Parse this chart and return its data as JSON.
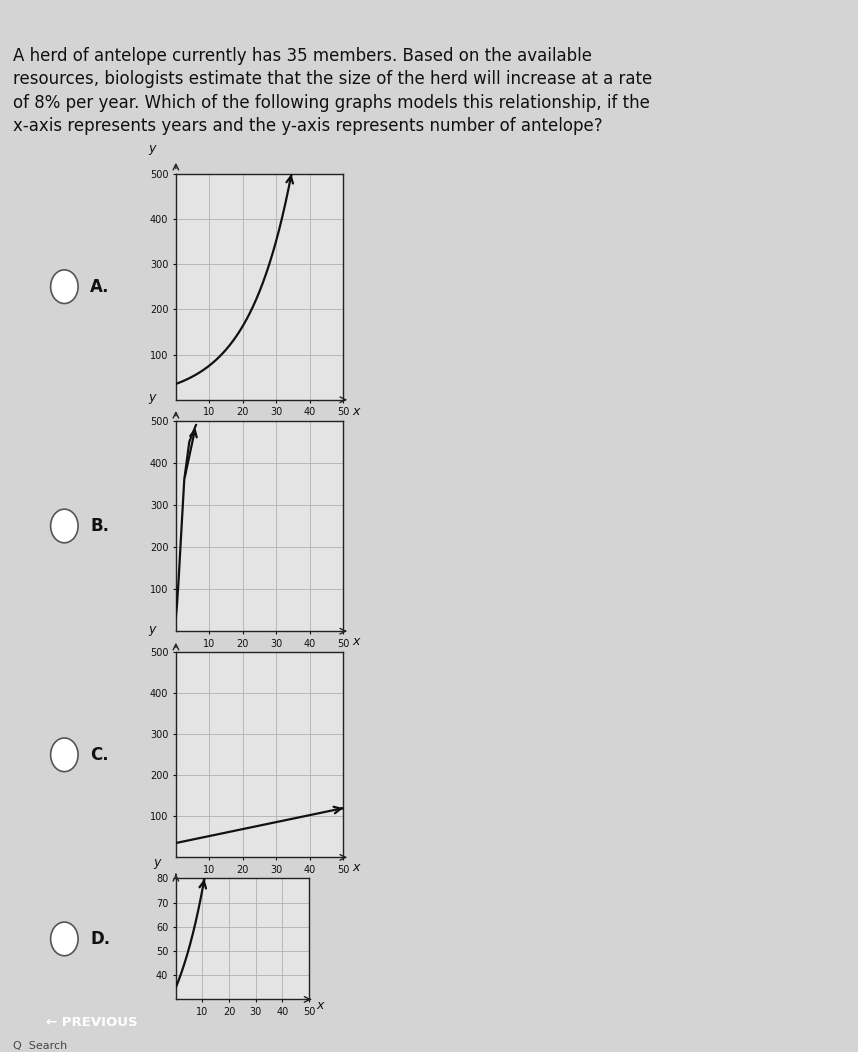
{
  "question_lines": [
    "A herd of antelope currently has 35 members. Based on the available",
    "resources, biologists estimate that the size of the herd will increase at a rate",
    "of 8% per year. Which of the following graphs models this relationship, if the",
    "x-axis represents years and the y-axis represents number of antelope?"
  ],
  "background_color": "#d4d4d4",
  "graph_bg_color": "#e4e4e4",
  "options": [
    "A.",
    "B.",
    "C.",
    "D."
  ],
  "ylim_ABC": [
    0,
    500
  ],
  "xlim": [
    0,
    50
  ],
  "yticks_ABC": [
    100,
    200,
    300,
    400,
    500
  ],
  "xticks": [
    10,
    20,
    30,
    40,
    50
  ],
  "ylim_D": [
    30,
    80
  ],
  "yticks_D": [
    40,
    50,
    60,
    70,
    80
  ],
  "initial_value": 35,
  "growth_rate": 0.08,
  "curve_color": "#111111",
  "grid_color": "#b0b0b0",
  "axis_color": "#222222",
  "text_color": "#111111",
  "tick_fontsize": 7,
  "label_fontsize": 9,
  "option_fontsize": 12,
  "question_fontsize": 12,
  "previous_button_color": "#1a7a9e",
  "previous_button_text": "← PREVIOUS",
  "search_text": "Search"
}
